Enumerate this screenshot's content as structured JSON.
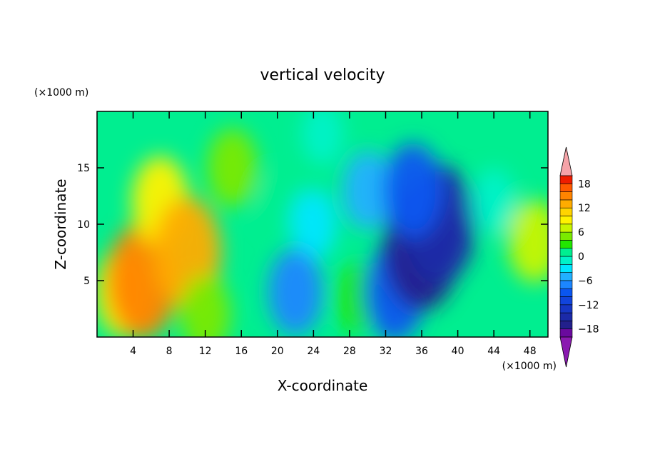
{
  "chart_data": {
    "type": "heatmap",
    "title": "vertical velocity",
    "xlabel": "X-coordinate",
    "ylabel": "Z-coordinate",
    "x_unit": "(×1000 m)",
    "y_unit": "(×1000 m)",
    "xlim": [
      0,
      50
    ],
    "ylim": [
      0,
      20
    ],
    "xticks": [
      4,
      8,
      12,
      16,
      20,
      24,
      28,
      32,
      36,
      40,
      44,
      48
    ],
    "yticks": [
      5,
      10,
      15
    ],
    "grid": false,
    "colorbar": {
      "placement": "right",
      "levels": [
        -20,
        -18,
        -16,
        -14,
        -12,
        -10,
        -8,
        -6,
        -4,
        -2,
        0,
        2,
        4,
        6,
        8,
        10,
        12,
        14,
        16,
        18,
        20
      ],
      "tick_labels": [
        {
          "value": 18,
          "label": "18"
        },
        {
          "value": 12,
          "label": "12"
        },
        {
          "value": 6,
          "label": "6"
        },
        {
          "value": 0,
          "label": "0"
        },
        {
          "value": -6,
          "label": "−6"
        },
        {
          "value": -12,
          "label": "−12"
        },
        {
          "value": -18,
          "label": "−18"
        }
      ],
      "colors": [
        "#6a0a9e",
        "#22208c",
        "#1b2aa8",
        "#1636c4",
        "#1144dc",
        "#0a56f0",
        "#1c86ff",
        "#21b0ff",
        "#00e6ff",
        "#00f2c8",
        "#00ee90",
        "#22e600",
        "#7aea00",
        "#c8f500",
        "#fff200",
        "#ffd400",
        "#ffac00",
        "#ff8400",
        "#ff5a00",
        "#ee1d00"
      ],
      "under_color": "#8a1ab0",
      "over_color": "#f5a3a8"
    },
    "cells": [
      {
        "x": 3,
        "y": 4,
        "value": 8
      },
      {
        "x": 5,
        "y": 5,
        "value": 14
      },
      {
        "x": 7,
        "y": 12,
        "value": 8
      },
      {
        "x": 10,
        "y": 7.5,
        "value": 13
      },
      {
        "x": 12,
        "y": 2,
        "value": 5
      },
      {
        "x": 15,
        "y": 15,
        "value": 5
      },
      {
        "x": 20,
        "y": 12,
        "value": 0
      },
      {
        "x": 24,
        "y": 10,
        "value": -3
      },
      {
        "x": 22,
        "y": 4,
        "value": -7
      },
      {
        "x": 29,
        "y": 3.5,
        "value": 3
      },
      {
        "x": 30,
        "y": 13,
        "value": -5
      },
      {
        "x": 33,
        "y": 4,
        "value": -10
      },
      {
        "x": 36,
        "y": 8,
        "value": -17
      },
      {
        "x": 38,
        "y": 10,
        "value": -15
      },
      {
        "x": 35,
        "y": 13,
        "value": -9
      },
      {
        "x": 44,
        "y": 12,
        "value": -2
      },
      {
        "x": 48.5,
        "y": 8.5,
        "value": 6
      },
      {
        "x": 25,
        "y": 18,
        "value": -1
      }
    ]
  }
}
